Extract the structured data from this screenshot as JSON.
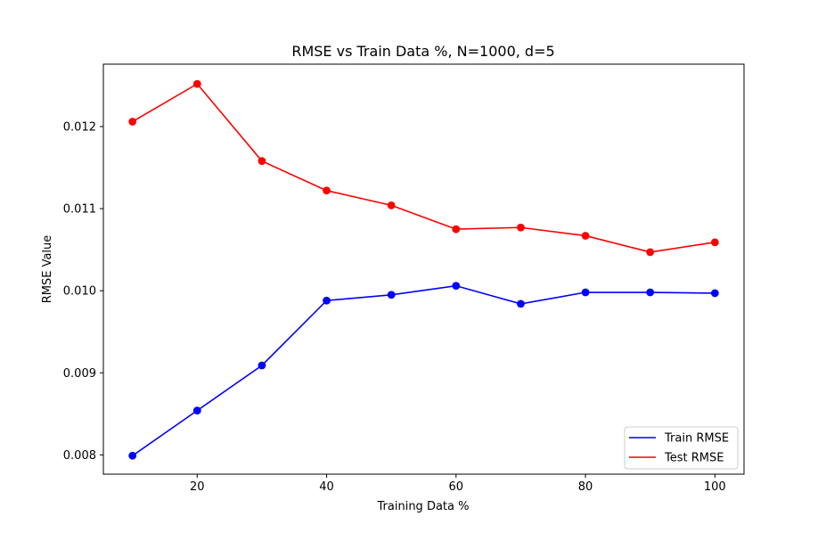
{
  "chart_data": {
    "type": "line",
    "title": "RMSE vs Train Data %, N=1000, d=5",
    "xlabel": "Training Data %",
    "ylabel": "RMSE Value",
    "xlim": [
      5.5,
      104.5
    ],
    "ylim": [
      0.007765,
      0.01276
    ],
    "xticks": [
      20,
      40,
      60,
      80,
      100
    ],
    "xtick_labels": [
      "20",
      "40",
      "60",
      "80",
      "100"
    ],
    "yticks": [
      0.008,
      0.009,
      0.01,
      0.011,
      0.012
    ],
    "ytick_labels": [
      "0.008",
      "0.009",
      "0.010",
      "0.011",
      "0.012"
    ],
    "grid": false,
    "legend_position": "lower-right",
    "x": [
      10,
      20,
      30,
      40,
      50,
      60,
      70,
      80,
      90,
      100
    ],
    "series": [
      {
        "name": "Train RMSE",
        "color": "#0000ff",
        "marker": "circle",
        "values": [
          0.00799,
          0.00854,
          0.00909,
          0.00988,
          0.00995,
          0.01006,
          0.00984,
          0.00998,
          0.00998,
          0.00997
        ]
      },
      {
        "name": "Test RMSE",
        "color": "#ff0000",
        "marker": "circle",
        "values": [
          0.01206,
          0.01252,
          0.01158,
          0.01122,
          0.01104,
          0.01075,
          0.01077,
          0.01067,
          0.01047,
          0.01059
        ]
      }
    ]
  }
}
